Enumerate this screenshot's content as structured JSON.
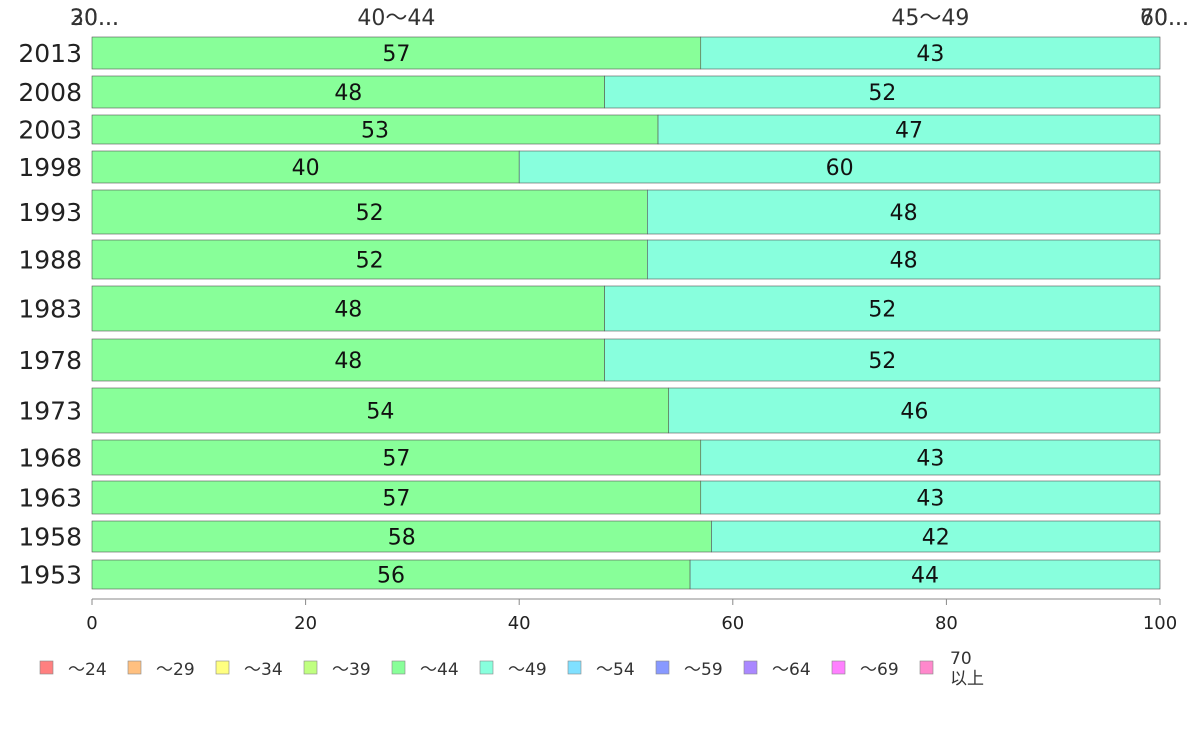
{
  "chart_data": {
    "type": "bar",
    "orientation": "horizontal",
    "stacked": true,
    "categories": [
      "2013",
      "2008",
      "2003",
      "1998",
      "1993",
      "1988",
      "1983",
      "1978",
      "1973",
      "1968",
      "1963",
      "1958",
      "1953"
    ],
    "series": [
      {
        "name": "～24",
        "color": "#ff8080",
        "values": [
          0,
          0,
          0,
          0,
          0,
          0,
          0,
          0,
          0,
          0,
          0,
          0,
          0
        ]
      },
      {
        "name": "～29",
        "color": "#ffc080",
        "values": [
          0,
          0,
          0,
          0,
          0,
          0,
          0,
          0,
          0,
          0,
          0,
          0,
          0
        ]
      },
      {
        "name": "～34",
        "color": "#ffff80",
        "values": [
          0,
          0,
          0,
          0,
          0,
          0,
          0,
          0,
          0,
          0,
          0,
          0,
          0
        ]
      },
      {
        "name": "～39",
        "color": "#c0ff80",
        "values": [
          0,
          0,
          0,
          0,
          0,
          0,
          0,
          0,
          0,
          0,
          0,
          0,
          0
        ]
      },
      {
        "name": "～44",
        "color": "#88ff99",
        "values": [
          57,
          48,
          53,
          40,
          52,
          52,
          48,
          48,
          54,
          57,
          57,
          58,
          56
        ]
      },
      {
        "name": "～49",
        "color": "#88ffdd",
        "values": [
          43,
          52,
          47,
          60,
          48,
          48,
          52,
          52,
          46,
          43,
          43,
          42,
          44
        ]
      },
      {
        "name": "～54",
        "color": "#80e0ff",
        "values": [
          0,
          0,
          0,
          0,
          0,
          0,
          0,
          0,
          0,
          0,
          0,
          0,
          0
        ]
      },
      {
        "name": "～59",
        "color": "#8899ff",
        "values": [
          0,
          0,
          0,
          0,
          0,
          0,
          0,
          0,
          0,
          0,
          0,
          0,
          0
        ]
      },
      {
        "name": "～64",
        "color": "#aa88ff",
        "values": [
          0,
          0,
          0,
          0,
          0,
          0,
          0,
          0,
          0,
          0,
          0,
          0,
          0
        ]
      },
      {
        "name": "～69",
        "color": "#ff80ff",
        "values": [
          0,
          0,
          0,
          0,
          0,
          0,
          0,
          0,
          0,
          0,
          0,
          0,
          0
        ]
      },
      {
        "name": "70\n以上",
        "color": "#ff88cc",
        "values": [
          0,
          0,
          0,
          0,
          0,
          0,
          0,
          0,
          0,
          0,
          0,
          0,
          0
        ]
      }
    ],
    "xlim": [
      0,
      100
    ],
    "xticks": [
      0,
      20,
      40,
      60,
      80,
      100
    ],
    "top_labels": [
      {
        "text": "20...",
        "x": 0
      },
      {
        "text": "30...",
        "x": 0
      },
      {
        "text": "40～44",
        "x": 28.5
      },
      {
        "text": "45～49",
        "x": 78.5
      },
      {
        "text": "70...",
        "x": 100
      },
      {
        "text": "60...",
        "x": 100
      }
    ],
    "grid": false,
    "legend_position": "bottom"
  }
}
